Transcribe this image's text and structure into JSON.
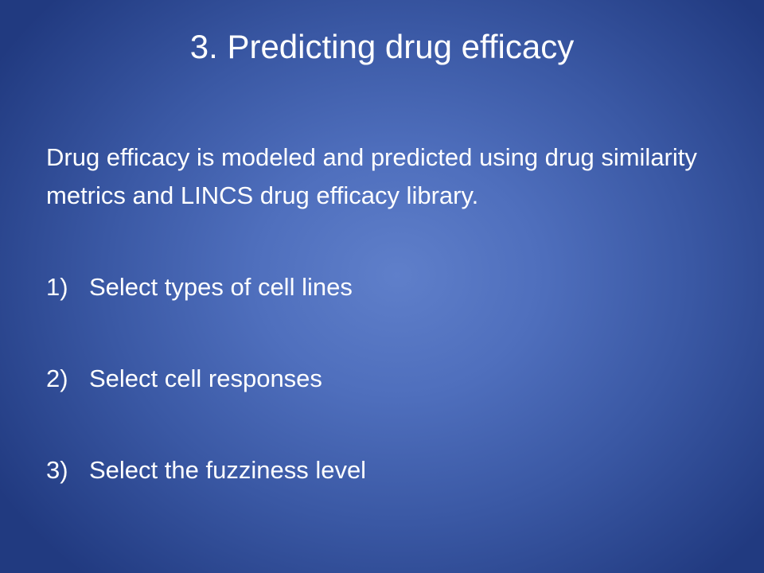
{
  "slide": {
    "title": "3. Predicting drug efficacy",
    "intro": "Drug efficacy is modeled and predicted using drug similarity metrics and LINCS drug efficacy library.",
    "list": [
      {
        "number": "1)",
        "text": "Select types of cell lines"
      },
      {
        "number": "2)",
        "text": "Select cell responses"
      },
      {
        "number": "3)",
        "text": "Select the fuzziness level"
      }
    ]
  },
  "colors": {
    "background_center": "#5f7fca",
    "background_edge": "#213a80",
    "text": "#ffffff"
  }
}
